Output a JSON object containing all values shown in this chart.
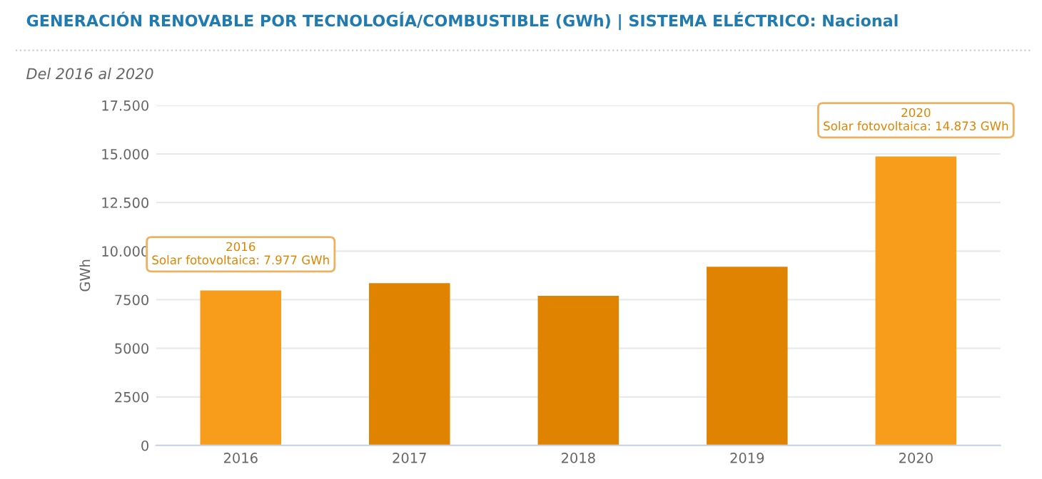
{
  "chart_data": {
    "type": "bar",
    "title": "GENERACIÓN RENOVABLE POR TECNOLOGÍA/COMBUSTIBLE (GWh) | SISTEMA ELÉCTRICO: Nacional",
    "subtitle": "Del 2016 al 2020",
    "ylabel": "GWh",
    "categories": [
      "2016",
      "2017",
      "2018",
      "2019",
      "2020"
    ],
    "values": [
      7977,
      8350,
      7700,
      9200,
      14873
    ],
    "colors": [
      "#f89c1c",
      "#e08300",
      "#e08300",
      "#e08300",
      "#f89c1c"
    ],
    "ylim": [
      0,
      17500
    ],
    "yticks": [
      0,
      {
        "value": 2500,
        "label": "2500"
      },
      {
        "value": 5000,
        "label": "5000"
      },
      {
        "value": 7500,
        "label": "7500"
      },
      {
        "value": 10000,
        "label": "10.000"
      },
      {
        "value": 12500,
        "label": "12.500"
      },
      {
        "value": 15000,
        "label": "15.000"
      },
      {
        "value": 17500,
        "label": "17.500"
      }
    ],
    "grid": "y",
    "annotations": [
      {
        "text": "2016\nSolar fotovoltaica: 7.977 GWh",
        "x": "2016",
        "y": 7977
      },
      {
        "text": "2020\nSolar fotovoltaica: 14.873 GWh",
        "x": "2020",
        "y": 14873
      }
    ]
  }
}
